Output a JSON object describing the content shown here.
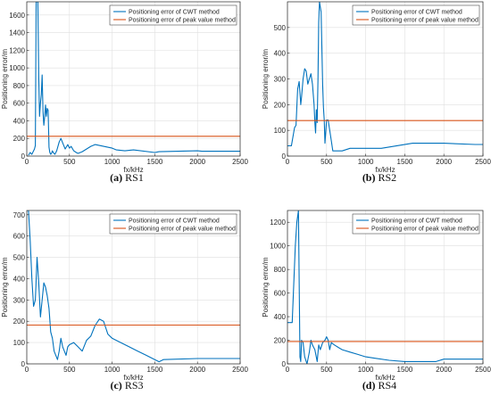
{
  "chart_data": [
    {
      "type": "line",
      "caption_letter": "(a)",
      "caption_text": " RS1",
      "xlabel": "fx/kHz",
      "ylabel": "Positioning error/m",
      "xlim": [
        0,
        2500
      ],
      "ylim": [
        0,
        1750
      ],
      "xticks": [
        0,
        500,
        1000,
        1500,
        2000,
        2500
      ],
      "yticks": [
        0,
        200,
        400,
        600,
        800,
        1000,
        1200,
        1400,
        1600
      ],
      "grid": true,
      "legend": "top-right",
      "series": [
        {
          "name": "Positioning error of CWT method",
          "color": "#0072BD",
          "x": [
            20,
            40,
            60,
            80,
            90,
            100,
            110,
            120,
            130,
            140,
            150,
            160,
            170,
            180,
            190,
            200,
            210,
            220,
            230,
            240,
            250,
            260,
            270,
            280,
            290,
            300,
            310,
            330,
            350,
            380,
            400,
            420,
            450,
            480,
            500,
            520,
            550,
            580,
            600,
            650,
            700,
            750,
            800,
            850,
            1000,
            1050,
            1150,
            1250,
            1500,
            1550,
            2000,
            2050,
            2500
          ],
          "y": [
            10,
            40,
            20,
            60,
            80,
            120,
            1750,
            1750,
            1750,
            900,
            450,
            600,
            700,
            920,
            500,
            350,
            450,
            580,
            450,
            540,
            520,
            100,
            40,
            20,
            30,
            60,
            40,
            20,
            60,
            160,
            200,
            150,
            80,
            130,
            90,
            110,
            60,
            40,
            30,
            50,
            80,
            110,
            130,
            120,
            90,
            70,
            60,
            70,
            40,
            50,
            60,
            55,
            55
          ]
        },
        {
          "name": "Positioning error of peak value method",
          "color": "#D95319",
          "x": [
            0,
            2500
          ],
          "y": [
            225,
            225
          ]
        }
      ]
    },
    {
      "type": "line",
      "caption_letter": "(b)",
      "caption_text": " RS2",
      "xlabel": "fx/kHz",
      "ylabel": "Positioning error/m",
      "xlim": [
        0,
        2500
      ],
      "ylim": [
        0,
        600
      ],
      "xticks": [
        0,
        500,
        1000,
        1500,
        2000,
        2500
      ],
      "yticks": [
        0,
        100,
        200,
        300,
        400,
        500
      ],
      "grid": true,
      "legend": "top-right",
      "series": [
        {
          "name": "Positioning error of CWT method",
          "color": "#0072BD",
          "x": [
            0,
            50,
            90,
            110,
            130,
            150,
            170,
            180,
            200,
            220,
            240,
            260,
            280,
            300,
            320,
            340,
            350,
            360,
            370,
            380,
            390,
            400,
            410,
            420,
            430,
            440,
            450,
            460,
            470,
            480,
            500,
            520,
            560,
            580,
            600,
            700,
            800,
            1200,
            1600,
            2000,
            2400,
            2500
          ],
          "y": [
            40,
            40,
            110,
            120,
            260,
            290,
            200,
            230,
            300,
            340,
            330,
            280,
            300,
            320,
            280,
            200,
            130,
            90,
            180,
            130,
            300,
            520,
            600,
            580,
            560,
            430,
            280,
            190,
            140,
            50,
            140,
            140,
            60,
            20,
            20,
            20,
            30,
            30,
            50,
            50,
            45,
            45
          ]
        },
        {
          "name": "Positioning error of peak value method",
          "color": "#D95319",
          "x": [
            0,
            2500
          ],
          "y": [
            138,
            138
          ]
        }
      ]
    },
    {
      "type": "line",
      "caption_letter": "(c)",
      "caption_text": " RS3",
      "xlabel": "fx/kHz",
      "ylabel": "Positioning error/m",
      "xlim": [
        0,
        2500
      ],
      "ylim": [
        0,
        720
      ],
      "xticks": [
        0,
        500,
        1000,
        1500,
        2000,
        2500
      ],
      "yticks": [
        0,
        100,
        200,
        300,
        400,
        500,
        600,
        700
      ],
      "grid": true,
      "legend": "top-right",
      "series": [
        {
          "name": "Positioning error of CWT method",
          "color": "#0072BD",
          "x": [
            0,
            20,
            40,
            60,
            80,
            100,
            120,
            140,
            160,
            180,
            200,
            220,
            240,
            260,
            280,
            300,
            320,
            340,
            360,
            380,
            400,
            420,
            440,
            460,
            480,
            500,
            550,
            600,
            650,
            700,
            750,
            800,
            850,
            900,
            950,
            1000,
            1100,
            1200,
            1300,
            1400,
            1500,
            1550,
            1600,
            2000,
            2500
          ],
          "y": [
            720,
            720,
            580,
            400,
            270,
            300,
            500,
            380,
            220,
            300,
            380,
            360,
            320,
            260,
            150,
            120,
            60,
            40,
            20,
            60,
            120,
            80,
            60,
            40,
            80,
            90,
            100,
            80,
            60,
            110,
            130,
            180,
            210,
            200,
            140,
            120,
            100,
            80,
            60,
            40,
            20,
            10,
            20,
            25,
            25
          ]
        },
        {
          "name": "Positioning error of peak value method",
          "color": "#D95319",
          "x": [
            0,
            2500
          ],
          "y": [
            182,
            182
          ]
        }
      ]
    },
    {
      "type": "line",
      "caption_letter": "(d)",
      "caption_text": " RS4",
      "xlabel": "fx/kHz",
      "ylabel": "Positioning error/m",
      "xlim": [
        0,
        2500
      ],
      "ylim": [
        0,
        1300
      ],
      "xticks": [
        0,
        500,
        1000,
        1500,
        2000,
        2500
      ],
      "yticks": [
        0,
        200,
        400,
        600,
        800,
        1000,
        1200
      ],
      "grid": true,
      "legend": "top-right",
      "series": [
        {
          "name": "Positioning error of CWT method",
          "color": "#0072BD",
          "x": [
            0,
            60,
            100,
            120,
            140,
            160,
            170,
            180,
            200,
            220,
            250,
            280,
            300,
            320,
            350,
            380,
            400,
            420,
            450,
            480,
            500,
            520,
            540,
            560,
            600,
            650,
            700,
            800,
            900,
            1000,
            1100,
            1300,
            1500,
            1900,
            2000,
            2500
          ],
          "y": [
            350,
            350,
            1000,
            1200,
            1300,
            60,
            20,
            200,
            180,
            60,
            0,
            100,
            200,
            160,
            120,
            20,
            160,
            120,
            180,
            200,
            230,
            200,
            120,
            180,
            160,
            140,
            120,
            100,
            80,
            60,
            50,
            30,
            20,
            20,
            40,
            40
          ]
        },
        {
          "name": "Positioning error of peak value method",
          "color": "#D95319",
          "x": [
            0,
            2500
          ],
          "y": [
            190,
            190
          ]
        }
      ]
    }
  ]
}
